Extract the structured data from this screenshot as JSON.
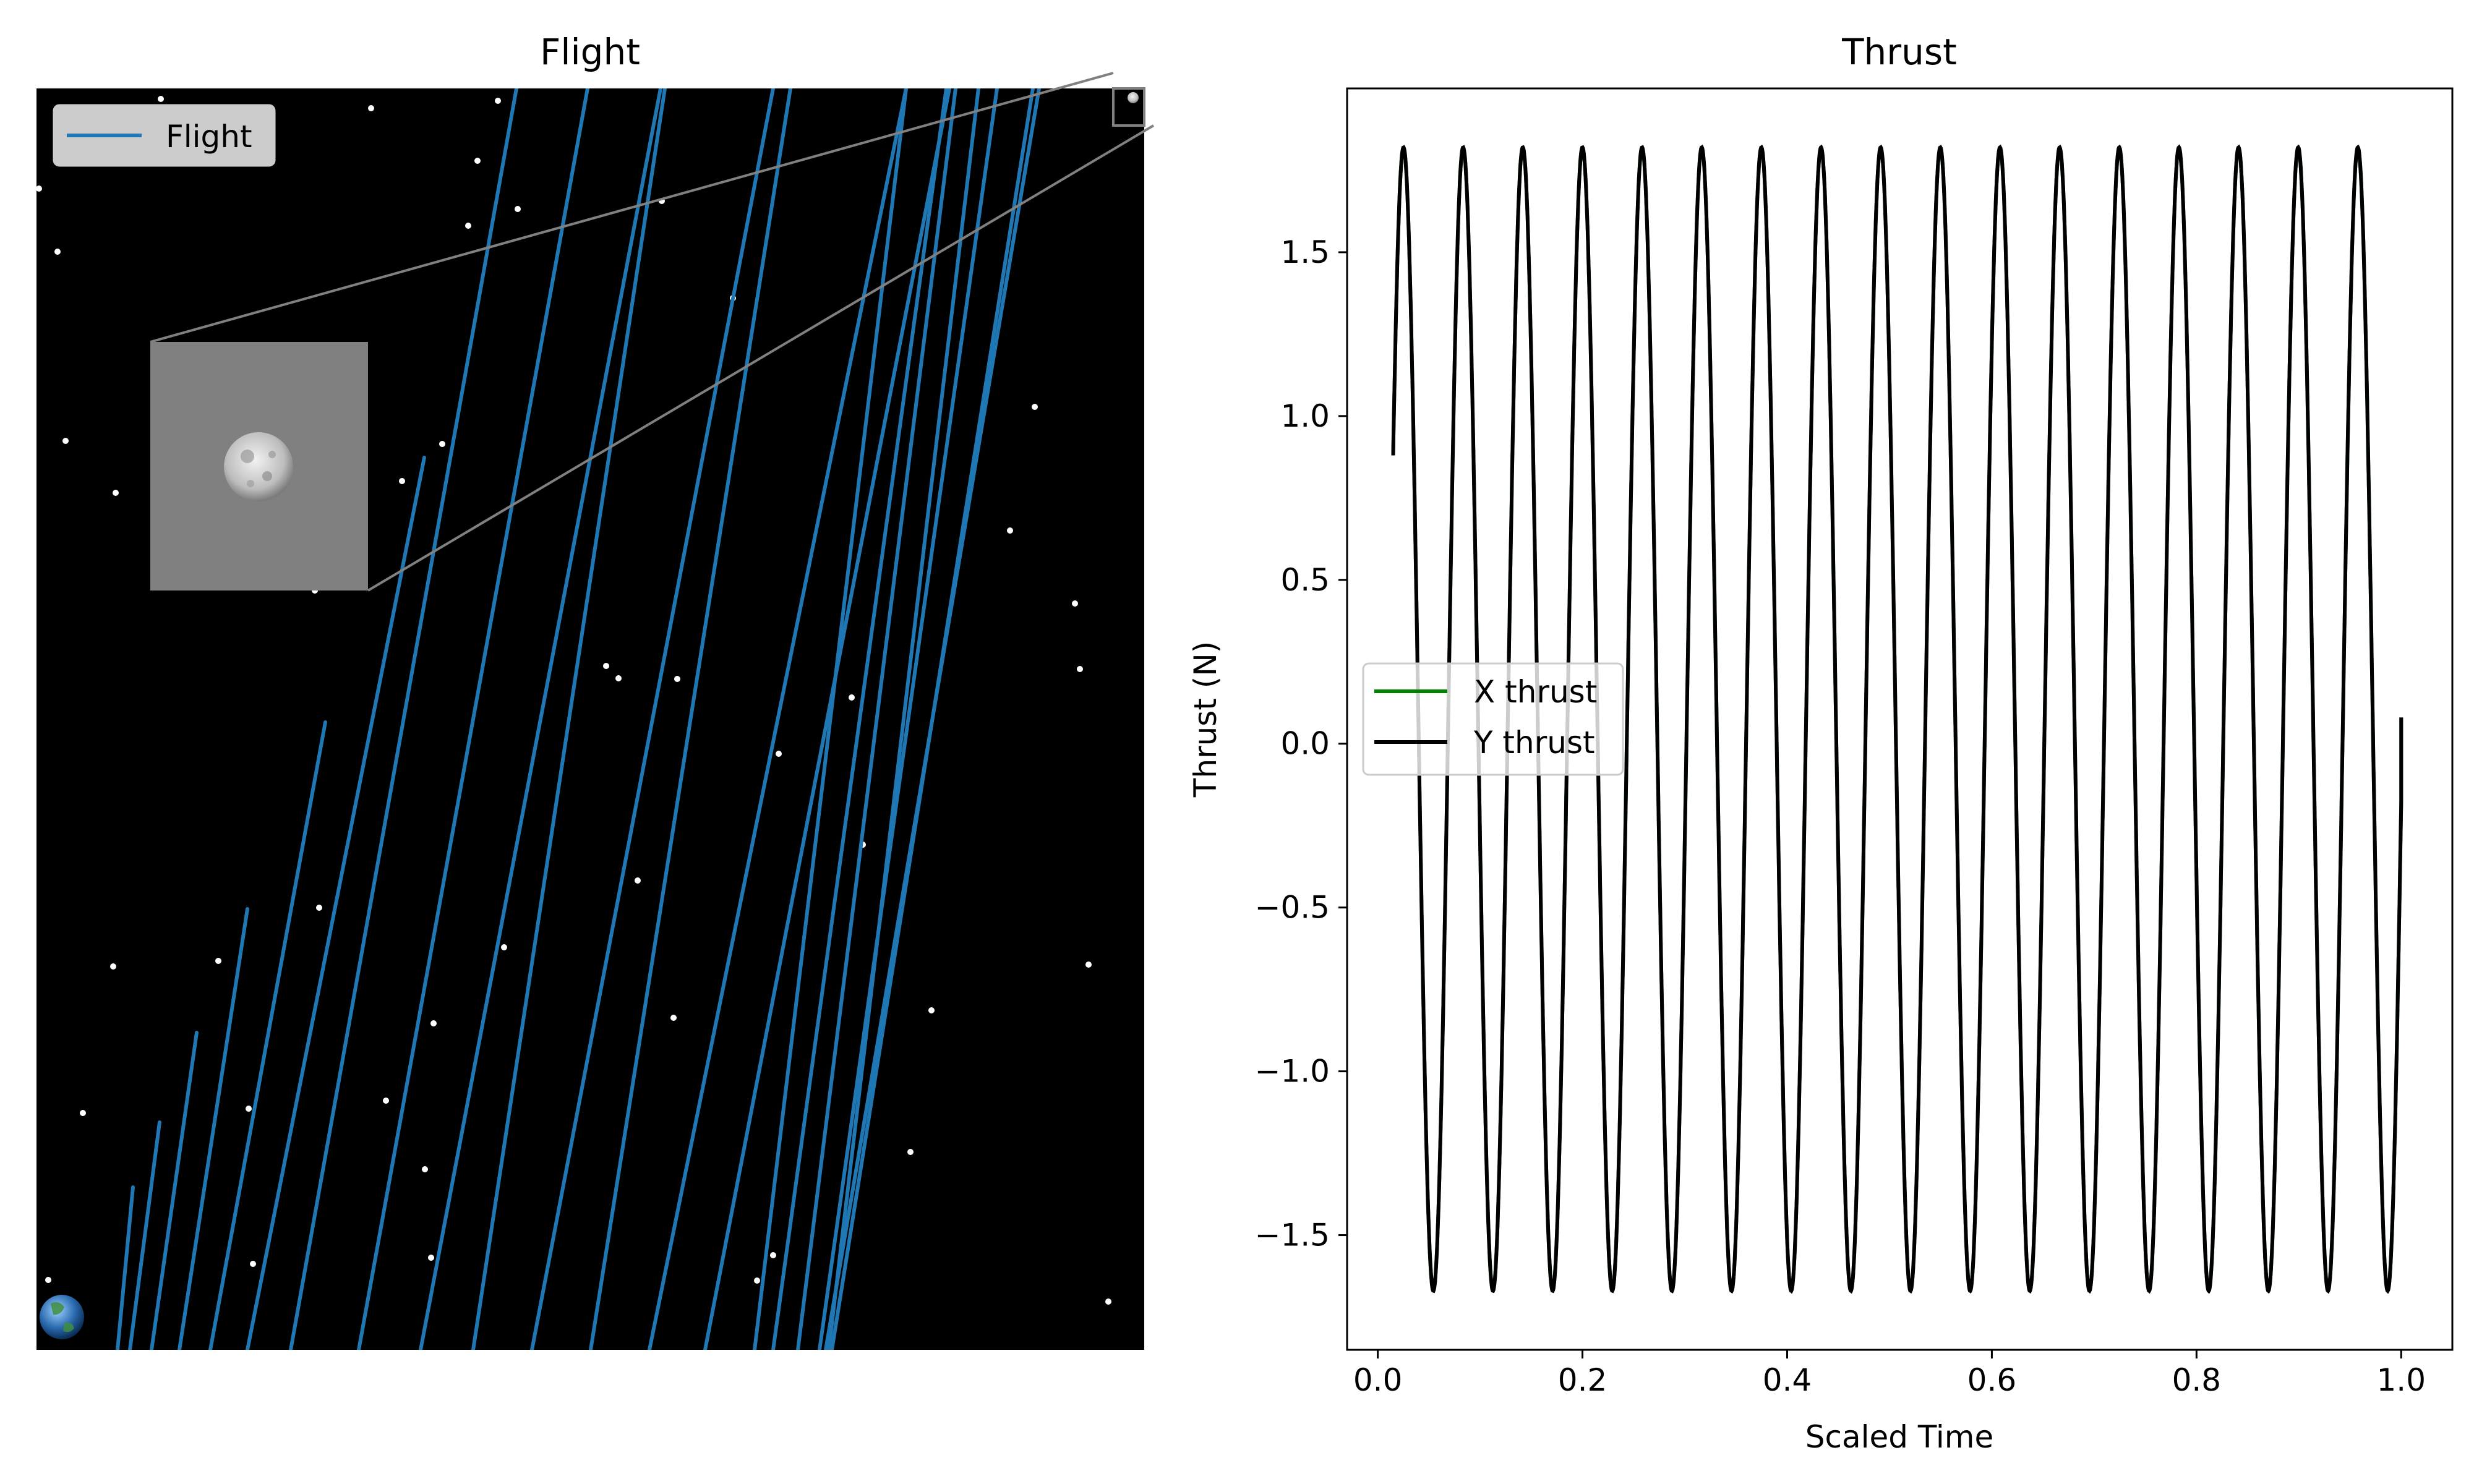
{
  "chart_data": [
    {
      "type": "line",
      "title": "Flight",
      "xlabel": "",
      "ylabel": "",
      "axes_visible": false,
      "background": "#000000",
      "legend": {
        "position": "top-left",
        "entries": [
          "Flight"
        ]
      },
      "series": [
        {
          "name": "Flight",
          "color": "#1f77b4"
        }
      ],
      "inset": {
        "content": "moon",
        "background": "#808080",
        "zoom_indicator": true
      },
      "decorations": [
        "stars",
        "earth-icon",
        "moon-icon"
      ]
    },
    {
      "type": "line",
      "title": "Thrust",
      "xlabel": "Scaled Time",
      "ylabel": "Thrust (N)",
      "xlim": [
        -0.03,
        1.05
      ],
      "ylim": [
        -1.85,
        2.0
      ],
      "xticks": [
        "0.0",
        "0.2",
        "0.4",
        "0.6",
        "0.8",
        "1.0"
      ],
      "yticks": [
        "−1.5",
        "−1.0",
        "−0.5",
        "0.0",
        "0.5",
        "1.0",
        "1.5"
      ],
      "legend": {
        "position": "center-left",
        "entries": [
          "X thrust",
          "Y thrust"
        ]
      },
      "x_range": [
        0.015,
        1.0
      ],
      "start_value": 0.88,
      "end_value": 0.08,
      "max": 1.82,
      "min": -1.67,
      "cycles": 16.9,
      "series": [
        {
          "name": "X thrust",
          "color": "#008000"
        },
        {
          "name": "Y thrust",
          "color": "#000000"
        }
      ]
    }
  ]
}
